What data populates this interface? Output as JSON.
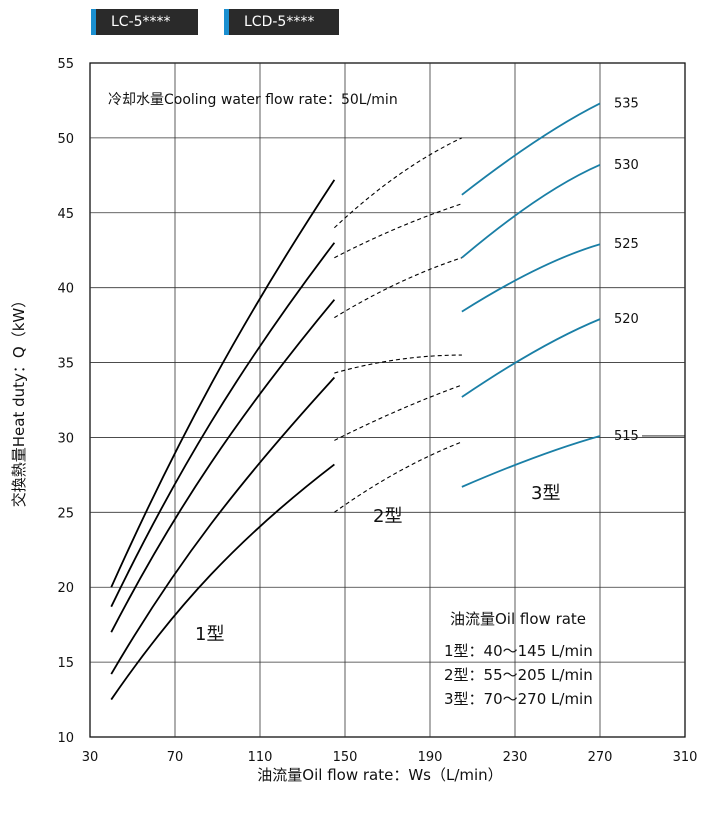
{
  "badges": [
    "LC-5****",
    "LCD-5****"
  ],
  "chart_data": {
    "type": "line",
    "subtitle": "冷却水量Cooling water flow rate：50L/min",
    "xlabel": "油流量Oil flow rate：Ws（L/min）",
    "ylabel": "交換熱量Heat duty：Q（kW）",
    "xlim": [
      30,
      310
    ],
    "ylim": [
      10,
      55
    ],
    "xticks": [
      "30",
      "70",
      "110",
      "150",
      "190",
      "230",
      "270",
      "310"
    ],
    "yticks": [
      "10",
      "15",
      "20",
      "25",
      "30",
      "35",
      "40",
      "45",
      "50",
      "55"
    ],
    "groups": [
      {
        "label": "1型",
        "color": "#000000",
        "style": "solid",
        "series": [
          {
            "x": [
              40,
              70,
              100,
              145
            ],
            "y": [
              20.0,
              29.5,
              37.5,
              47.2
            ]
          },
          {
            "x": [
              40,
              70,
              100,
              145
            ],
            "y": [
              18.7,
              27.5,
              34.6,
              43.0
            ]
          },
          {
            "x": [
              40,
              70,
              100,
              145
            ],
            "y": [
              17.0,
              25.2,
              31.5,
              39.2
            ]
          },
          {
            "x": [
              40,
              70,
              100,
              145
            ],
            "y": [
              14.2,
              21.5,
              27.0,
              34.0
            ]
          },
          {
            "x": [
              40,
              70,
              100,
              145
            ],
            "y": [
              12.5,
              18.7,
              23.3,
              28.2
            ]
          }
        ]
      },
      {
        "label": "2型",
        "color": "#000000",
        "style": "dashed",
        "series": [
          {
            "x": [
              145,
              175,
              205
            ],
            "y": [
              44.0,
              47.5,
              50.0
            ]
          },
          {
            "x": [
              145,
              175,
              205
            ],
            "y": [
              42.0,
              44.0,
              45.6
            ]
          },
          {
            "x": [
              145,
              175,
              205
            ],
            "y": [
              38.0,
              40.3,
              42.0
            ]
          },
          {
            "x": [
              145,
              175,
              205
            ],
            "y": [
              34.3,
              35.2,
              35.5
            ]
          },
          {
            "x": [
              145,
              175,
              205
            ],
            "y": [
              29.8,
              31.8,
              33.5
            ]
          },
          {
            "x": [
              145,
              175,
              205
            ],
            "y": [
              25.0,
              27.7,
              29.7
            ]
          }
        ]
      },
      {
        "label": "3型",
        "color": "#1a7fa6",
        "style": "solid",
        "series": [
          {
            "name": "535",
            "x": [
              205,
              240,
              270
            ],
            "y": [
              46.2,
              49.8,
              52.3
            ]
          },
          {
            "name": "530",
            "x": [
              205,
              240,
              270
            ],
            "y": [
              42.0,
              45.8,
              48.2
            ]
          },
          {
            "name": "525",
            "x": [
              205,
              240,
              270
            ],
            "y": [
              38.4,
              41.2,
              42.9
            ]
          },
          {
            "name": "520",
            "x": [
              205,
              240,
              270
            ],
            "y": [
              32.7,
              35.8,
              37.9
            ]
          },
          {
            "name": "515",
            "x": [
              205,
              240,
              270
            ],
            "y": [
              26.7,
              28.7,
              30.1
            ]
          }
        ]
      }
    ],
    "legend": {
      "title": "油流量Oil flow rate",
      "lines": [
        "1型：40～145 L/min",
        "2型：55～205 L/min",
        "3型：70～270 L/min"
      ]
    },
    "grid": true
  }
}
